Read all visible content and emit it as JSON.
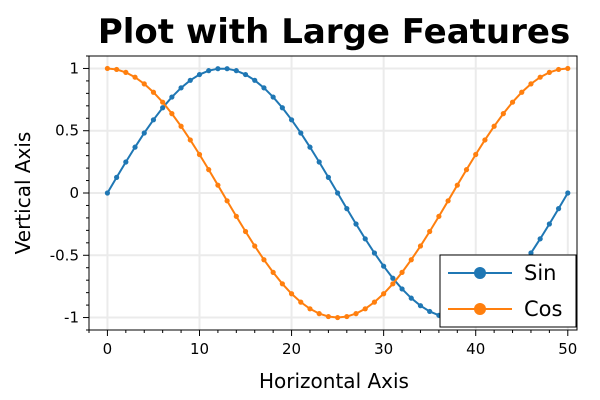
{
  "chart_data": {
    "type": "line",
    "title": "Plot with Large Features",
    "xlabel": "Horizontal Axis",
    "ylabel": "Vertical Axis",
    "xlim": [
      -2,
      51
    ],
    "ylim": [
      -1.1,
      1.1
    ],
    "x_ticks": [
      {
        "value": 0,
        "label": "0"
      },
      {
        "value": 10,
        "label": "10"
      },
      {
        "value": 20,
        "label": "20"
      },
      {
        "value": 30,
        "label": "30"
      },
      {
        "value": 40,
        "label": "40"
      },
      {
        "value": 50,
        "label": "50"
      }
    ],
    "y_ticks": [
      {
        "value": 1,
        "label": "1"
      },
      {
        "value": 0.5,
        "label": "0.5"
      },
      {
        "value": 0,
        "label": "0"
      },
      {
        "value": -0.5,
        "label": "-0.5"
      },
      {
        "value": -1,
        "label": "-1"
      }
    ],
    "grid": true,
    "legend_position": "bottom-right",
    "x": [
      0,
      1,
      2,
      3,
      4,
      5,
      6,
      7,
      8,
      9,
      10,
      11,
      12,
      13,
      14,
      15,
      16,
      17,
      18,
      19,
      20,
      21,
      22,
      23,
      24,
      25,
      26,
      27,
      28,
      29,
      30,
      31,
      32,
      33,
      34,
      35,
      36,
      37,
      38,
      39,
      40,
      41,
      42,
      43,
      44,
      45,
      46,
      47,
      48,
      49,
      50
    ],
    "series": [
      {
        "name": "Sin",
        "color": "#1f77b4",
        "values": [
          0,
          0.1253,
          0.2487,
          0.3681,
          0.4818,
          0.5878,
          0.6845,
          0.7705,
          0.8443,
          0.9048,
          0.9511,
          0.9823,
          0.998,
          0.998,
          0.9823,
          0.9511,
          0.9048,
          0.8443,
          0.7705,
          0.6845,
          0.5878,
          0.4818,
          0.3681,
          0.2487,
          0.1253,
          0,
          -0.1253,
          -0.2487,
          -0.3681,
          -0.4818,
          -0.5878,
          -0.6845,
          -0.7705,
          -0.8443,
          -0.9048,
          -0.9511,
          -0.9823,
          -0.998,
          -0.998,
          -0.9823,
          -0.9511,
          -0.9048,
          -0.8443,
          -0.7705,
          -0.6845,
          -0.5878,
          -0.4818,
          -0.3681,
          -0.2487,
          -0.1253,
          0
        ]
      },
      {
        "name": "Cos",
        "color": "#ff7f0e",
        "values": [
          1,
          0.9921,
          0.9686,
          0.9298,
          0.8763,
          0.809,
          0.729,
          0.6374,
          0.5358,
          0.4258,
          0.309,
          0.1874,
          0.0628,
          -0.0628,
          -0.1874,
          -0.309,
          -0.4258,
          -0.5358,
          -0.6374,
          -0.729,
          -0.809,
          -0.8763,
          -0.9298,
          -0.9686,
          -0.9921,
          -1,
          -0.9921,
          -0.9686,
          -0.9298,
          -0.8763,
          -0.809,
          -0.729,
          -0.6374,
          -0.5358,
          -0.4258,
          -0.309,
          -0.1874,
          -0.0628,
          0.0628,
          0.1874,
          0.309,
          0.4258,
          0.5358,
          0.6374,
          0.729,
          0.809,
          0.8763,
          0.9298,
          0.9686,
          0.9921,
          1
        ]
      }
    ]
  }
}
